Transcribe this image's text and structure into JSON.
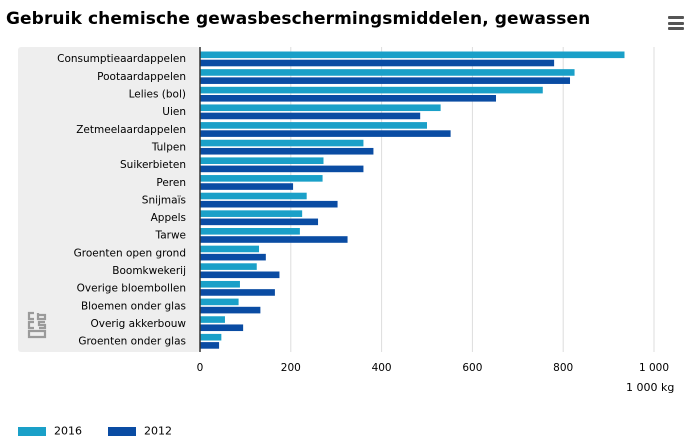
{
  "header": {
    "title": "Gebruik chemische gewasbeschermingsmiddelen, gewassen",
    "menu_icon": "hamburger-menu-icon"
  },
  "colors": {
    "series_2016": "#1aa0c8",
    "series_2012": "#0a4ca3",
    "label_panel": "#eeeeee",
    "gridline": "#dddddd",
    "axis": "#333333"
  },
  "logo": {
    "icon": "cbs-logo-icon"
  },
  "chart_data": {
    "type": "bar",
    "orientation": "horizontal",
    "title": "Gebruik chemische gewasbeschermingsmiddelen, gewassen",
    "unit_label": "1 000 kg",
    "categories": [
      "Consumptieaardappelen",
      "Pootaardappelen",
      "Lelies (bol)",
      "Uien",
      "Zetmeelaardappelen",
      "Tulpen",
      "Suikerbieten",
      "Peren",
      "Snijmaïs",
      "Appels",
      "Tarwe",
      "Groenten open grond",
      "Boomkwekerij",
      "Overige bloembollen",
      "Bloemen onder glas",
      "Overig akkerbouw",
      "Groenten onder glas"
    ],
    "series": [
      {
        "name": "2016",
        "values": [
          935,
          825,
          755,
          530,
          500,
          360,
          272,
          270,
          235,
          225,
          220,
          130,
          125,
          88,
          85,
          55,
          47
        ]
      },
      {
        "name": "2012",
        "values": [
          780,
          815,
          652,
          485,
          552,
          382,
          360,
          205,
          303,
          260,
          325,
          145,
          175,
          165,
          133,
          95,
          42
        ]
      }
    ],
    "xlim": [
      0,
      1000
    ],
    "ticks": [
      0,
      200,
      400,
      600,
      800,
      1000
    ],
    "tick_labels": [
      "0",
      "200",
      "400",
      "600",
      "800",
      "1 000"
    ],
    "grid": true,
    "legend_position": "bottom-left"
  }
}
